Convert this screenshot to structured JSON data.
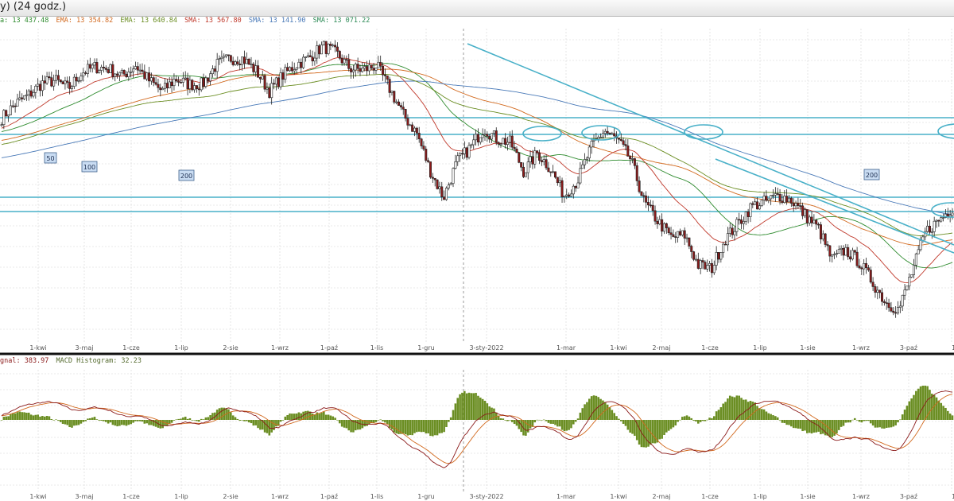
{
  "window": {
    "title": "y) (24 godz.)"
  },
  "indicator_legend": [
    {
      "text": "a: 13 437.48",
      "color": "#2e8b2e"
    },
    {
      "text": "EMA: 13 354.82",
      "color": "#d2691e"
    },
    {
      "text": "EMA: 13 640.84",
      "color": "#6b8e23"
    },
    {
      "text": "SMA: 13 567.80",
      "color": "#c0392b"
    },
    {
      "text": "SMA: 13 141.90",
      "color": "#4a7ab8"
    },
    {
      "text": "SMA: 13 071.22",
      "color": "#2e8b57"
    }
  ],
  "macd_legend": [
    {
      "text": "gnal: 383.97",
      "color": "#8b1a1a"
    },
    {
      "text": "MACD Histogram: 32.23",
      "color": "#556b2f"
    }
  ],
  "ma_labels": [
    "50",
    "100",
    "200",
    "200"
  ],
  "colors": {
    "candle_up": "#ffffff",
    "candle_down": "#8b1a1a",
    "wick": "#222222",
    "sma50": "#2e8b2e",
    "sma100": "#d2691e",
    "sma200": "#4a7ab8",
    "ema_a": "#c0392b",
    "ema_b": "#6b8e23",
    "level_line": "#48b0c8",
    "trend_line": "#48b0c8",
    "macd_line": "#8b1a1a",
    "signal_line": "#d2691e",
    "histogram": "#6b8e23"
  },
  "chart_data": [
    {
      "type": "candlestick",
      "x_tick_labels": [
        "1-kwi",
        "3-maj",
        "1-cze",
        "1-lip",
        "2-sie",
        "1-wrz",
        "1-paź",
        "1-lis",
        "1-gru",
        "3-sty-2022",
        "1-mar",
        "1-kwi",
        "2-maj",
        "1-cze",
        "1-lip",
        "1-sie",
        "1-wrz",
        "3-paź",
        "1-"
      ],
      "close_path": [
        14500,
        14780,
        14960,
        15200,
        15260,
        15100,
        15420,
        15530,
        15490,
        15350,
        15560,
        15260,
        15040,
        15290,
        15180,
        15180,
        15560,
        15700,
        15700,
        15450,
        15040,
        15360,
        15580,
        15720,
        15950,
        15800,
        15500,
        15470,
        15560,
        15080,
        14560,
        14200,
        13450,
        12900,
        13620,
        13910,
        14300,
        14080,
        14010,
        13420,
        13800,
        13480,
        12950,
        13240,
        13900,
        14250,
        14050,
        13660,
        12800,
        12430,
        12100,
        12150,
        11550,
        11470,
        12060,
        12380,
        12730,
        12820,
        12950,
        12850,
        12550,
        12280,
        11650,
        11850,
        11620,
        11220,
        10800,
        10650,
        11420,
        12220,
        12450,
        12700
      ],
      "grid_lines": true,
      "horizontal_levels": 4,
      "trend_lines": 2,
      "series": [
        {
          "name": "50",
          "legend": "SMA"
        },
        {
          "name": "100",
          "legend": "SMA"
        },
        {
          "name": "200",
          "legend": "SMA"
        }
      ]
    },
    {
      "type": "macd",
      "x_tick_labels": [
        "1-kwi",
        "3-maj",
        "1-cze",
        "1-lip",
        "2-sie",
        "1-wrz",
        "1-paź",
        "1-lis",
        "1-gru",
        "3-sty-2022",
        "1-mar",
        "1-kwi",
        "2-maj",
        "1-cze",
        "1-lip",
        "1-sie",
        "1-wrz",
        "3-paź",
        "1-"
      ],
      "series": [
        {
          "name": "MACD",
          "legend": ""
        },
        {
          "name": "Signal",
          "legend": "gnal: 383.97"
        },
        {
          "name": "MACD Histogram",
          "legend": "MACD Histogram: 32.23"
        }
      ],
      "signal_last": 383.97,
      "histogram_last": 32.23
    }
  ]
}
